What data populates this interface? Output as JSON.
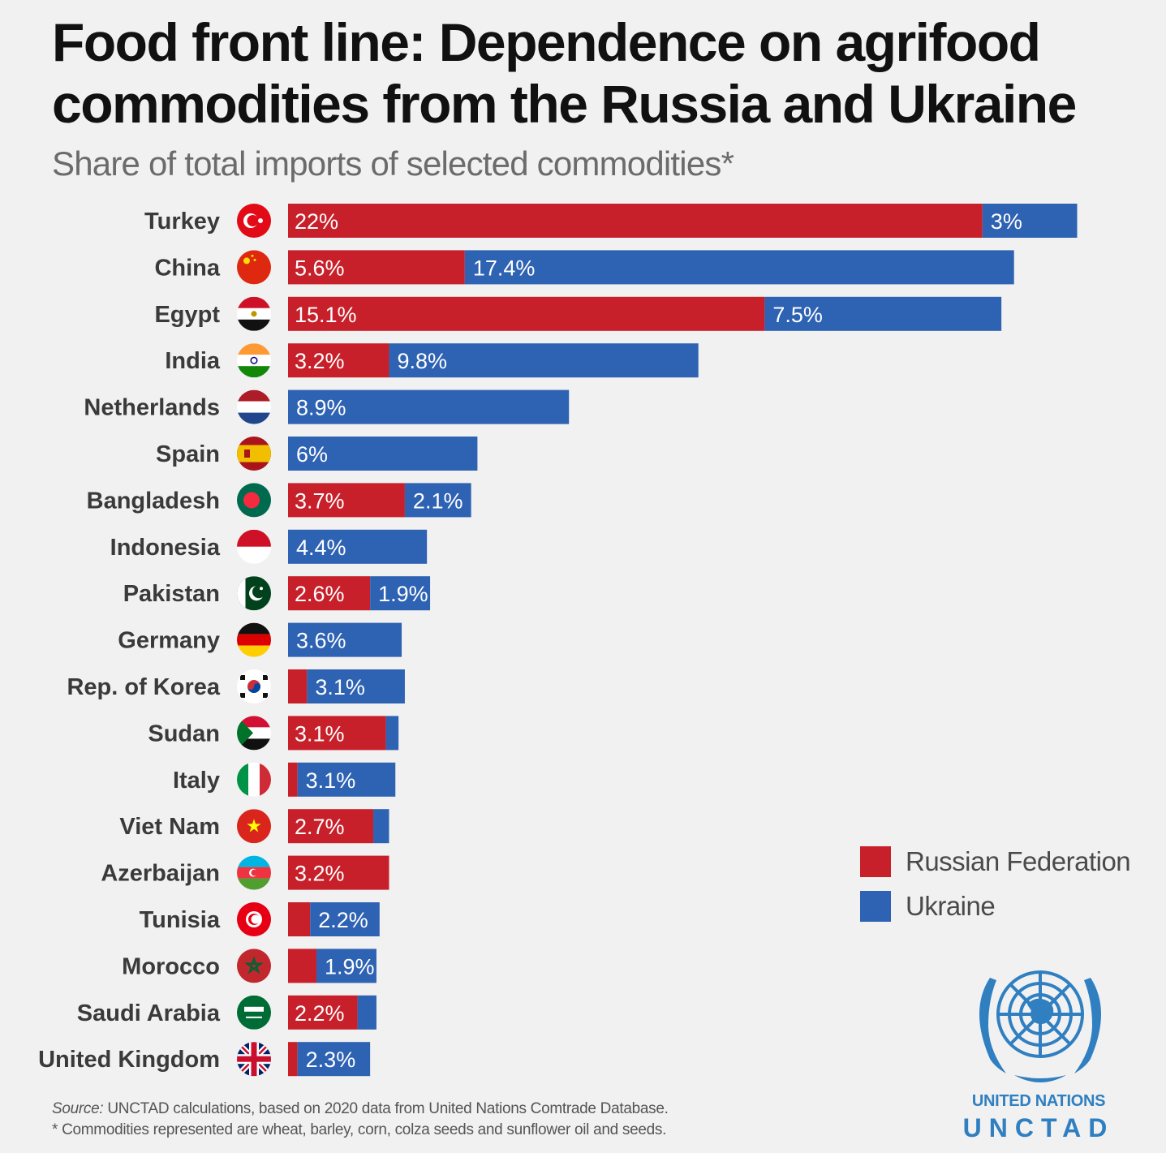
{
  "header": {
    "title": "Food front line: Dependence on agrifood commodities from the Russia and Ukraine",
    "subtitle": "Share of total imports of selected commodities*"
  },
  "colors": {
    "russia": "#c8202a",
    "ukraine": "#2e62b3",
    "un_blue": "#2f7fc1"
  },
  "chart_data": {
    "type": "bar",
    "orientation": "horizontal",
    "stacked": true,
    "title": "Food front line: Dependence on agrifood commodities from the Russia and Ukraine",
    "subtitle": "Share of total imports of selected commodities*",
    "categories": [
      "Turkey",
      "China",
      "Egypt",
      "India",
      "Netherlands",
      "Spain",
      "Bangladesh",
      "Indonesia",
      "Pakistan",
      "Germany",
      "Rep. of Korea",
      "Sudan",
      "Italy",
      "Viet Nam",
      "Azerbaijan",
      "Tunisia",
      "Morocco",
      "Saudi Arabia",
      "United Kingdom"
    ],
    "series": [
      {
        "name": "Russian Federation",
        "color": "#c8202a",
        "values": [
          22,
          5.6,
          15.1,
          3.2,
          0,
          0,
          3.7,
          0,
          2.6,
          0,
          0.6,
          3.1,
          0.3,
          2.7,
          3.2,
          0.7,
          0.9,
          2.2,
          0.3
        ],
        "labels": [
          "22%",
          "5.6%",
          "15.1%",
          "3.2%",
          "",
          "",
          "3.7%",
          "",
          "2.6%",
          "",
          "",
          "3.1%",
          "",
          "2.7%",
          "3.2%",
          "",
          "",
          "2.2%",
          ""
        ]
      },
      {
        "name": "Ukraine",
        "color": "#2e62b3",
        "values": [
          3,
          17.4,
          7.5,
          9.8,
          8.9,
          6,
          2.1,
          4.4,
          1.9,
          3.6,
          3.1,
          0.4,
          3.1,
          0.5,
          0,
          2.2,
          1.9,
          0.6,
          2.3
        ],
        "labels": [
          "3%",
          "17.4%",
          "7.5%",
          "9.8%",
          "8.9%",
          "6%",
          "2.1%",
          "4.4%",
          "1.9%",
          "3.6%",
          "3.1%",
          "",
          "3.1%",
          "",
          "",
          "2.2%",
          "1.9%",
          "",
          "2.3%"
        ]
      }
    ],
    "xlim": [
      0,
      25
    ],
    "grid": false,
    "legend_position": "bottom-right"
  },
  "legend": {
    "items": [
      {
        "label": "Russian Federation",
        "color": "#c8202a"
      },
      {
        "label": "Ukraine",
        "color": "#2e62b3"
      }
    ]
  },
  "flags": [
    "turkey-flag-icon",
    "china-flag-icon",
    "egypt-flag-icon",
    "india-flag-icon",
    "netherlands-flag-icon",
    "spain-flag-icon",
    "bangladesh-flag-icon",
    "indonesia-flag-icon",
    "pakistan-flag-icon",
    "germany-flag-icon",
    "south-korea-flag-icon",
    "sudan-flag-icon",
    "italy-flag-icon",
    "vietnam-flag-icon",
    "azerbaijan-flag-icon",
    "tunisia-flag-icon",
    "morocco-flag-icon",
    "saudi-arabia-flag-icon",
    "uk-flag-icon"
  ],
  "branding": {
    "org_name": "UNITED NATIONS",
    "org_acronym": "UNCTAD",
    "logo_icon": "un-emblem-icon"
  },
  "footer": {
    "source_label": "Source:",
    "source_text": " UNCTAD calculations, based on 2020 data from United Nations Comtrade Database.",
    "footnote": "* Commodities represented are wheat, barley, corn, colza seeds and sunflower oil and seeds."
  }
}
